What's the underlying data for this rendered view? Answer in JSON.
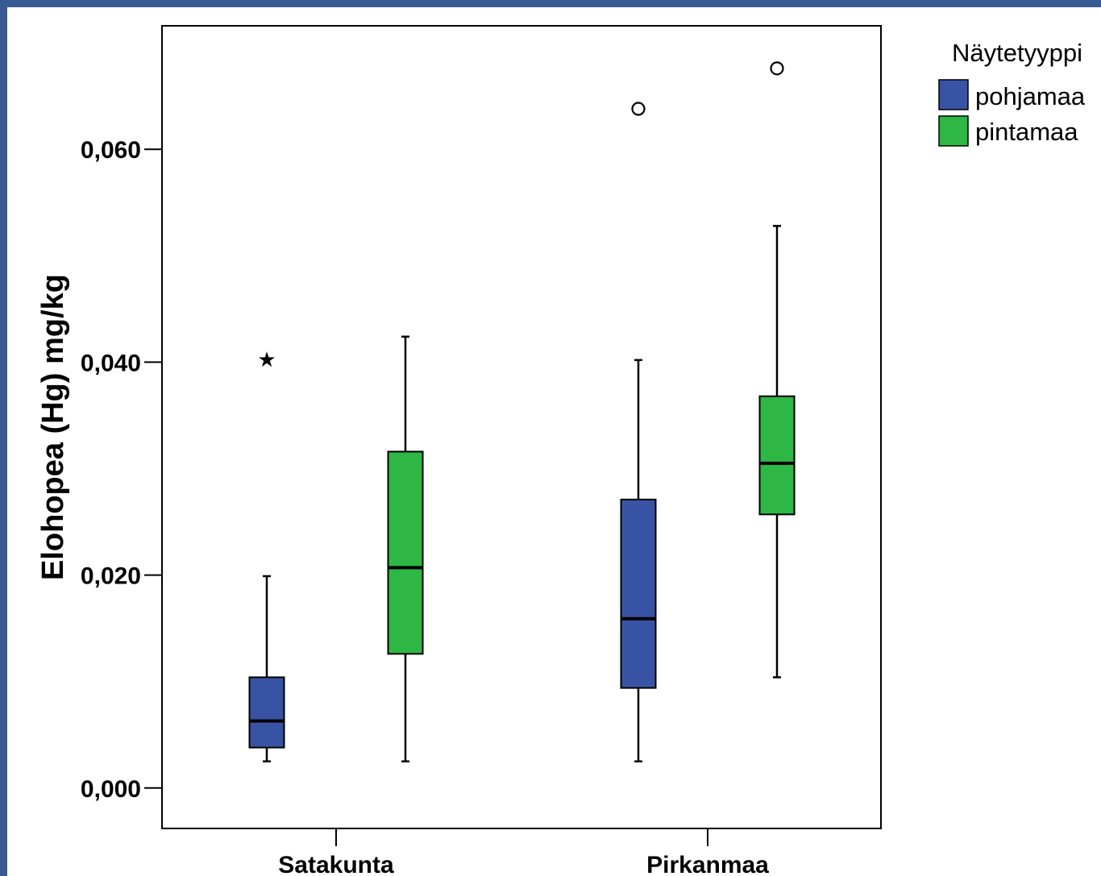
{
  "chart_data": {
    "type": "boxplot",
    "title": "",
    "xlabel": "",
    "ylabel": "Elohopea (Hg) mg/kg",
    "ylim": [
      -0.0038,
      0.0716
    ],
    "yticks": [
      {
        "value": 0.0,
        "label": "0,000"
      },
      {
        "value": 0.02,
        "label": "0,020"
      },
      {
        "value": 0.04,
        "label": "0,040"
      },
      {
        "value": 0.06,
        "label": "0,060"
      }
    ],
    "categories": [
      "Satakunta",
      "Pirkanmaa"
    ],
    "legend": {
      "title": "Näytetyyppi",
      "position": "right"
    },
    "series": [
      {
        "name": "pohjamaa",
        "color": "#3953a4",
        "boxes": [
          {
            "min": 0.0025,
            "q1": 0.0038,
            "median": 0.0063,
            "q3": 0.0104,
            "max": 0.0199,
            "extremes": [
              0.0405
            ],
            "outliers": []
          },
          {
            "min": 0.0025,
            "q1": 0.0094,
            "median": 0.0159,
            "q3": 0.0271,
            "max": 0.0402,
            "extremes": [],
            "outliers": [
              0.0638
            ]
          }
        ]
      },
      {
        "name": "pintamaa",
        "color": "#2eb744",
        "boxes": [
          {
            "min": 0.0025,
            "q1": 0.0126,
            "median": 0.0207,
            "q3": 0.0316,
            "max": 0.0424,
            "extremes": [],
            "outliers": []
          },
          {
            "min": 0.0104,
            "q1": 0.0257,
            "median": 0.0305,
            "q3": 0.0368,
            "max": 0.0528,
            "extremes": [],
            "outliers": [
              0.0676
            ]
          }
        ]
      }
    ],
    "grid": false
  }
}
